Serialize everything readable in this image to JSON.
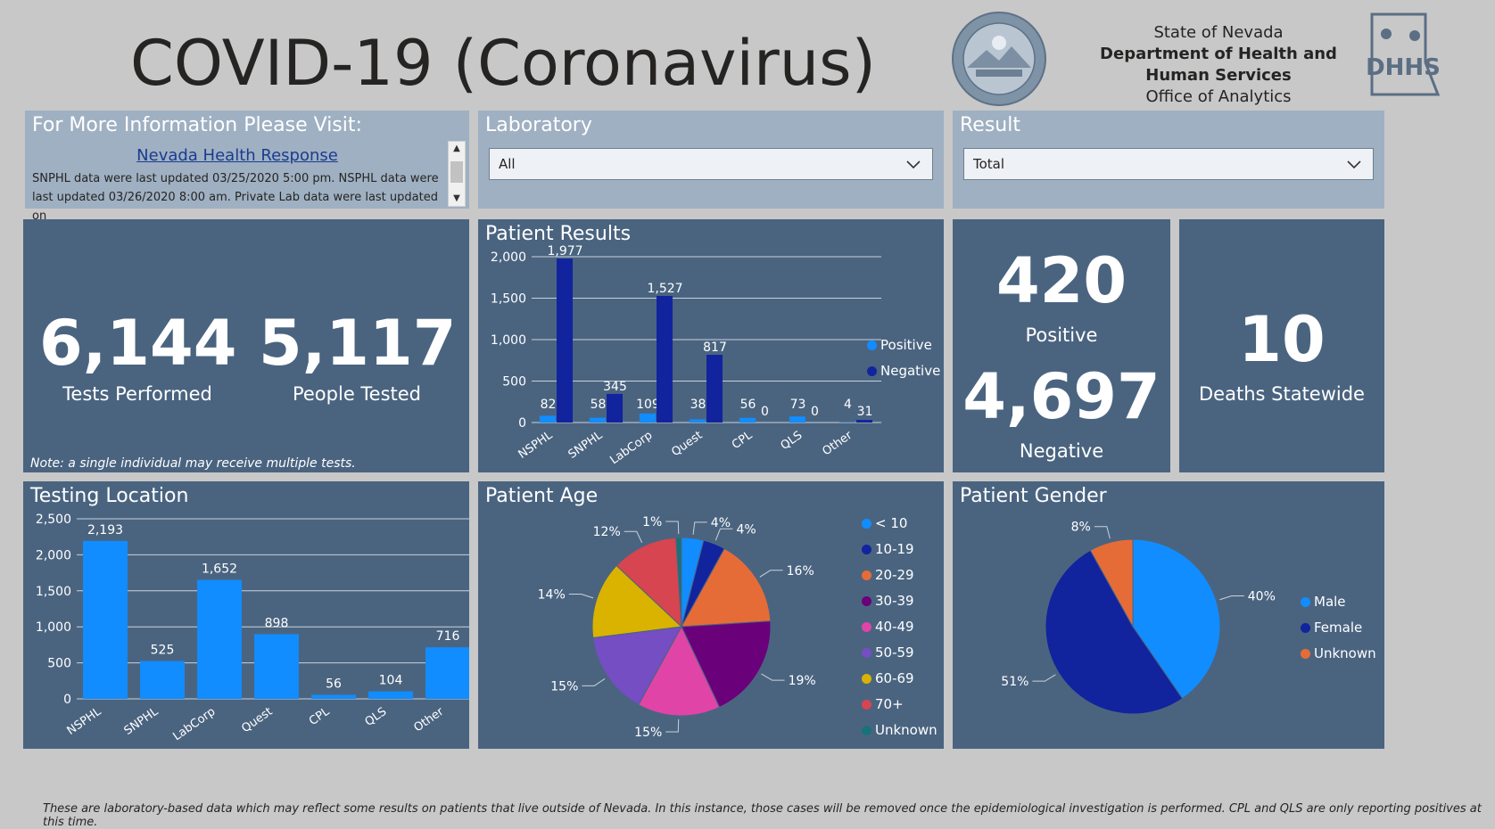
{
  "header": {
    "title": "COVID-19 (Coronavirus)",
    "org_line1": "State of Nevada",
    "org_line2": "Department of Health and",
    "org_line3": "Human Services",
    "org_line4": "Office of Analytics",
    "seal_icon": "nevada-state-seal",
    "logo_icon": "dhhs-logo",
    "logo_text": "DHHS"
  },
  "info": {
    "title": "For More Information Please Visit:",
    "link": "Nevada Health Response",
    "text": "SNPHL data were last updated 03/25/2020 5:00 pm. NSPHL data were last updated 03/26/2020 8:00 am.  Private Lab data were last updated on"
  },
  "filters": {
    "laboratory": {
      "label": "Laboratory",
      "value": "All"
    },
    "result": {
      "label": "Result",
      "value": "Total"
    }
  },
  "tests": {
    "tests_performed": "6,144",
    "tests_label": "Tests Performed",
    "people_tested": "5,117",
    "people_label": "People Tested",
    "note": "Note: a single individual may receive multiple tests."
  },
  "results_cards": {
    "positive": "420",
    "positive_label": "Positive",
    "negative": "4,697",
    "negative_label": "Negative",
    "deaths": "10",
    "deaths_label": "Deaths Statewide"
  },
  "footer": "These are laboratory-based data which may reflect some results on patients that live outside of Nevada. In this instance, those cases will be removed once the epidemiological investigation is performed.  CPL and QLS are only reporting positives at this time.",
  "colors": {
    "panel": "#4a6480",
    "positive": "#118dff",
    "negative": "#12239e"
  },
  "chart_data": [
    {
      "id": "patient-results",
      "type": "bar",
      "title": "Patient Results",
      "categories": [
        "NSPHL",
        "SNPHL",
        "LabCorp",
        "Quest",
        "CPL",
        "QLS",
        "Other"
      ],
      "series": [
        {
          "name": "Positive",
          "color": "#118dff",
          "values": [
            82,
            58,
            109,
            38,
            56,
            73,
            4
          ]
        },
        {
          "name": "Negative",
          "color": "#12239e",
          "values": [
            1977,
            345,
            1527,
            817,
            0,
            0,
            31
          ]
        }
      ],
      "data_labels": {
        "Positive": [
          "82",
          "58",
          "109",
          "38",
          "56",
          "73",
          "4"
        ],
        "Negative": [
          "1,977",
          "345",
          "1,527",
          "817",
          "0",
          "0",
          "31"
        ]
      },
      "yticks": [
        "0",
        "500",
        "1,000",
        "1,500",
        "2,000"
      ],
      "ylim": [
        0,
        2000
      ],
      "grid": true,
      "legend": "right"
    },
    {
      "id": "testing-location",
      "type": "bar",
      "title": "Testing Location",
      "categories": [
        "NSPHL",
        "SNPHL",
        "LabCorp",
        "Quest",
        "CPL",
        "QLS",
        "Other"
      ],
      "values": [
        2193,
        525,
        1652,
        898,
        56,
        104,
        716
      ],
      "data_labels": [
        "2,193",
        "525",
        "1,652",
        "898",
        "56",
        "104",
        "716"
      ],
      "color": "#118dff",
      "yticks": [
        "0",
        "500",
        "1,000",
        "1,500",
        "2,000",
        "2,500"
      ],
      "ylim": [
        0,
        2500
      ],
      "grid": true
    },
    {
      "id": "patient-age",
      "type": "pie",
      "title": "Patient Age",
      "labels": [
        "< 10",
        "10-19",
        "20-29",
        "30-39",
        "40-49",
        "50-59",
        "60-69",
        "70+",
        "Unknown"
      ],
      "values": [
        4,
        4,
        16,
        19,
        15,
        15,
        14,
        12,
        1
      ],
      "data_labels": [
        "4%",
        "4%",
        "16%",
        "19%",
        "15%",
        "15%",
        "14%",
        "12%",
        "1%"
      ],
      "colors": [
        "#118dff",
        "#12239e",
        "#e66c37",
        "#6b007b",
        "#e044a7",
        "#744ec2",
        "#d9b300",
        "#d64550",
        "#197278"
      ],
      "legend": "right"
    },
    {
      "id": "patient-gender",
      "type": "pie",
      "title": "Patient Gender",
      "labels": [
        "Male",
        "Female",
        "Unknown"
      ],
      "values": [
        40,
        51,
        8
      ],
      "data_labels": [
        "40%",
        "51%",
        "8%"
      ],
      "colors": [
        "#118dff",
        "#12239e",
        "#e66c37"
      ],
      "legend": "right"
    }
  ]
}
